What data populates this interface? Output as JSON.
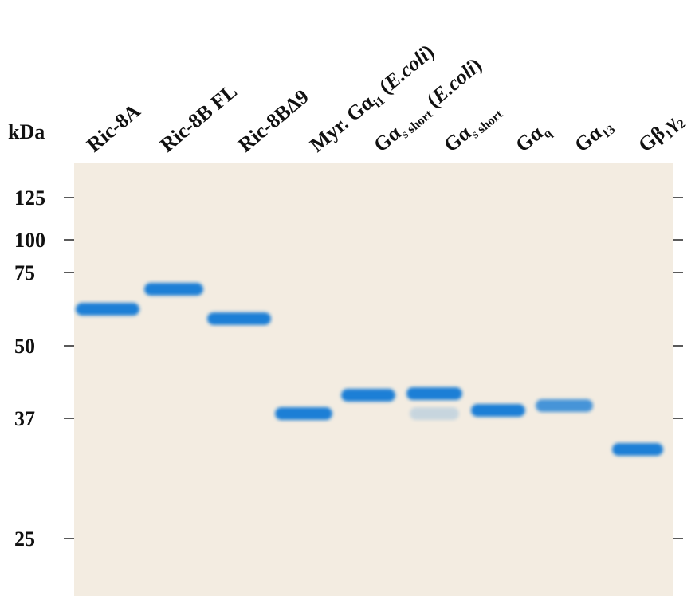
{
  "unit_label": "kDa",
  "markers": [
    "125",
    "100",
    "75",
    "50",
    "37",
    "25"
  ],
  "lanes": [
    {
      "label": [
        {
          "text": "Ric-8A"
        }
      ]
    },
    {
      "label": [
        {
          "text": "Ric-8B FL"
        }
      ]
    },
    {
      "label": [
        {
          "text": "Ric-8BΔ9"
        }
      ]
    },
    {
      "label": [
        {
          "text": "Myr. Gα"
        },
        {
          "text": "i1",
          "sub": true
        },
        {
          "text": " ("
        },
        {
          "text": "E.coli",
          "italic": true
        },
        {
          "text": ")"
        }
      ]
    },
    {
      "label": [
        {
          "text": "Gα"
        },
        {
          "text": "s short",
          "sub": true
        },
        {
          "text": " ("
        },
        {
          "text": "E.coli",
          "italic": true
        },
        {
          "text": ")"
        }
      ]
    },
    {
      "label": [
        {
          "text": "Gα"
        },
        {
          "text": "s short",
          "sub": true
        }
      ]
    },
    {
      "label": [
        {
          "text": "Gα"
        },
        {
          "text": "q",
          "sub": true
        }
      ]
    },
    {
      "label": [
        {
          "text": "Gα"
        },
        {
          "text": "13",
          "sub": true
        }
      ]
    },
    {
      "label": [
        {
          "text": "Gβ"
        },
        {
          "text": "1",
          "sub": true
        },
        {
          "text": "γ"
        },
        {
          "text": "2",
          "sub": true
        }
      ]
    }
  ]
}
